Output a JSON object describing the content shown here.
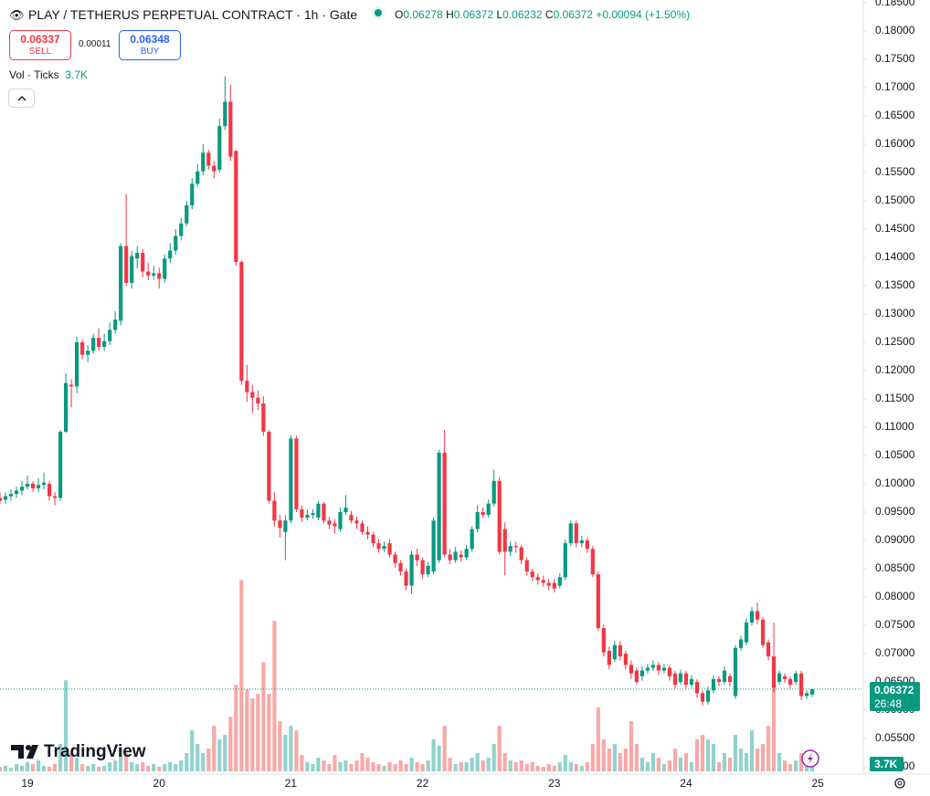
{
  "header": {
    "title": "PLAY / TETHERUS PERPETUAL CONTRACT · 1h · Gate",
    "ohlc_labels": [
      "O",
      "H",
      "L",
      "C"
    ],
    "change": "+0.00094",
    "change_pct": "(+1.50%)",
    "sell_price": "0.06337",
    "sell_label": "SELL",
    "spread": "0.00011",
    "buy_price": "0.06348",
    "buy_label": "BUY",
    "volume_indicator": "Vol · Ticks",
    "countdown": "26:48",
    "branding": "TradingView"
  },
  "chart_data": {
    "type": "candlestick",
    "open": [
      0.0975,
      0.0972,
      0.0978,
      0.0982,
      0.0988,
      0.0995,
      0.1,
      0.0992,
      0.0998,
      0.1,
      0.0978,
      0.0975,
      0.1092,
      0.1175,
      0.1172,
      0.125,
      0.1228,
      0.1235,
      0.1258,
      0.1242,
      0.1252,
      0.1272,
      0.1288,
      0.142,
      0.1355,
      0.1398,
      0.1408,
      0.1375,
      0.1368,
      0.1372,
      0.1362,
      0.1398,
      0.1412,
      0.1438,
      0.146,
      0.1492,
      0.153,
      0.1552,
      0.1585,
      0.1562,
      0.1555,
      0.1632,
      0.1675,
      0.1588,
      0.1392,
      0.1182,
      0.1162,
      0.1152,
      0.1142,
      0.1092,
      0.097,
      0.0935,
      0.0915,
      0.0935,
      0.108,
      0.0955,
      0.094,
      0.0945,
      0.094,
      0.0965,
      0.0935,
      0.093,
      0.092,
      0.095,
      0.0945,
      0.0935,
      0.093,
      0.0915,
      0.091,
      0.0895,
      0.0885,
      0.0895,
      0.0875,
      0.086,
      0.0845,
      0.082,
      0.0875,
      0.0865,
      0.084,
      0.0845,
      0.0865,
      0.1055,
      0.0875,
      0.0865,
      0.0875,
      0.087,
      0.0885,
      0.092,
      0.095,
      0.0945,
      0.0965,
      0.1005,
      0.092,
      0.088,
      0.089,
      0.0888,
      0.0865,
      0.0845,
      0.0835,
      0.083,
      0.0825,
      0.0825,
      0.082,
      0.0835,
      0.0895,
      0.093,
      0.0895,
      0.09,
      0.0885,
      0.084,
      0.0745,
      0.0705,
      0.069,
      0.0715,
      0.07,
      0.068,
      0.067,
      0.066,
      0.067,
      0.0675,
      0.068,
      0.067,
      0.0675,
      0.0665,
      0.065,
      0.0665,
      0.0645,
      0.065,
      0.063,
      0.0615,
      0.0635,
      0.0655,
      0.065,
      0.066,
      0.0625,
      0.071,
      0.072,
      0.0755,
      0.0775,
      0.076,
      0.072,
      0.0695,
      0.065,
      0.066,
      0.0655,
      0.065,
      0.0665,
      0.0625,
      0.06278
    ],
    "high": [
      0.0985,
      0.0985,
      0.099,
      0.0995,
      0.1005,
      0.1015,
      0.1005,
      0.101,
      0.102,
      0.1005,
      0.0985,
      0.1095,
      0.1195,
      0.1185,
      0.126,
      0.1255,
      0.1245,
      0.1265,
      0.1275,
      0.1265,
      0.1285,
      0.1305,
      0.1425,
      0.1512,
      0.1412,
      0.142,
      0.1415,
      0.139,
      0.1385,
      0.1382,
      0.1405,
      0.1425,
      0.145,
      0.147,
      0.15,
      0.154,
      0.1565,
      0.16,
      0.159,
      0.157,
      0.1645,
      0.172,
      0.1705,
      0.159,
      0.1395,
      0.121,
      0.1175,
      0.1165,
      0.1155,
      0.1095,
      0.0985,
      0.0945,
      0.0945,
      0.1085,
      0.1085,
      0.0962,
      0.0955,
      0.0955,
      0.097,
      0.0968,
      0.0942,
      0.0938,
      0.0958,
      0.098,
      0.0952,
      0.0942,
      0.0935,
      0.0925,
      0.0915,
      0.0902,
      0.0898,
      0.0902,
      0.088,
      0.0865,
      0.085,
      0.0882,
      0.0885,
      0.087,
      0.0862,
      0.094,
      0.106,
      0.1095,
      0.0885,
      0.0888,
      0.0882,
      0.0892,
      0.0925,
      0.0962,
      0.0958,
      0.0972,
      0.1025,
      0.1012,
      0.0932,
      0.0898,
      0.0898,
      0.0892,
      0.087,
      0.085,
      0.0842,
      0.0838,
      0.0832,
      0.0832,
      0.0842,
      0.0902,
      0.0935,
      0.0935,
      0.0908,
      0.0905,
      0.089,
      0.0845,
      0.0752,
      0.0712,
      0.0722,
      0.0722,
      0.0705,
      0.0688,
      0.0675,
      0.0678,
      0.0682,
      0.0688,
      0.0685,
      0.0682,
      0.068,
      0.067,
      0.0672,
      0.067,
      0.0662,
      0.0655,
      0.0635,
      0.0642,
      0.0662,
      0.066,
      0.0678,
      0.0665,
      0.0715,
      0.0732,
      0.0762,
      0.0782,
      0.079,
      0.0765,
      0.0725,
      0.0755,
      0.067,
      0.0665,
      0.066,
      0.067,
      0.067,
      0.0635,
      0.06372
    ],
    "low": [
      0.0965,
      0.0965,
      0.097,
      0.0975,
      0.098,
      0.099,
      0.0985,
      0.0985,
      0.099,
      0.097,
      0.0962,
      0.097,
      0.109,
      0.1135,
      0.116,
      0.122,
      0.1215,
      0.123,
      0.1235,
      0.1235,
      0.1245,
      0.1265,
      0.128,
      0.135,
      0.1345,
      0.138,
      0.1365,
      0.136,
      0.136,
      0.1345,
      0.1355,
      0.139,
      0.1405,
      0.143,
      0.1455,
      0.1485,
      0.1525,
      0.1545,
      0.1555,
      0.154,
      0.155,
      0.1625,
      0.157,
      0.1385,
      0.1175,
      0.1145,
      0.1125,
      0.113,
      0.1085,
      0.0965,
      0.0925,
      0.0905,
      0.0865,
      0.093,
      0.095,
      0.0932,
      0.0935,
      0.0938,
      0.0935,
      0.093,
      0.092,
      0.0912,
      0.0915,
      0.0945,
      0.093,
      0.092,
      0.091,
      0.0902,
      0.0888,
      0.0878,
      0.088,
      0.087,
      0.0852,
      0.0838,
      0.0812,
      0.0805,
      0.0855,
      0.0832,
      0.0835,
      0.084,
      0.086,
      0.087,
      0.0858,
      0.086,
      0.0862,
      0.0865,
      0.088,
      0.0915,
      0.094,
      0.094,
      0.096,
      0.0875,
      0.0838,
      0.0872,
      0.0878,
      0.0858,
      0.0838,
      0.0828,
      0.0822,
      0.0818,
      0.0812,
      0.0808,
      0.0815,
      0.083,
      0.089,
      0.0888,
      0.0888,
      0.0878,
      0.0835,
      0.074,
      0.0695,
      0.0672,
      0.0685,
      0.0688,
      0.0672,
      0.0655,
      0.0645,
      0.0652,
      0.0665,
      0.067,
      0.0662,
      0.0665,
      0.0652,
      0.0638,
      0.0645,
      0.0638,
      0.064,
      0.0622,
      0.0608,
      0.061,
      0.063,
      0.0642,
      0.0645,
      0.0642,
      0.062,
      0.0705,
      0.0715,
      0.075,
      0.0752,
      0.071,
      0.0688,
      0.0632,
      0.0645,
      0.0648,
      0.0638,
      0.0645,
      0.0618,
      0.062,
      0.06232
    ],
    "close": [
      0.097,
      0.0978,
      0.0982,
      0.0988,
      0.0995,
      0.1,
      0.0992,
      0.0998,
      0.1002,
      0.0978,
      0.0975,
      0.1092,
      0.1178,
      0.1172,
      0.125,
      0.1228,
      0.1235,
      0.1258,
      0.1242,
      0.1252,
      0.1272,
      0.129,
      0.142,
      0.1355,
      0.1402,
      0.1408,
      0.1375,
      0.1368,
      0.1372,
      0.1362,
      0.1398,
      0.1412,
      0.1438,
      0.146,
      0.1492,
      0.153,
      0.1552,
      0.1585,
      0.1562,
      0.1552,
      0.1632,
      0.1675,
      0.1578,
      0.1392,
      0.1182,
      0.1162,
      0.1152,
      0.1142,
      0.1092,
      0.097,
      0.0935,
      0.0922,
      0.0935,
      0.108,
      0.0955,
      0.094,
      0.0945,
      0.0948,
      0.0965,
      0.0935,
      0.0928,
      0.0925,
      0.095,
      0.0958,
      0.0935,
      0.093,
      0.0915,
      0.091,
      0.0895,
      0.0885,
      0.089,
      0.0875,
      0.086,
      0.0845,
      0.082,
      0.0875,
      0.0865,
      0.084,
      0.0855,
      0.0935,
      0.1055,
      0.0875,
      0.0865,
      0.088,
      0.087,
      0.0885,
      0.092,
      0.095,
      0.0945,
      0.0965,
      0.1005,
      0.088,
      0.088,
      0.089,
      0.0888,
      0.0865,
      0.0845,
      0.0835,
      0.083,
      0.0825,
      0.082,
      0.0815,
      0.0835,
      0.0895,
      0.093,
      0.0895,
      0.09,
      0.0885,
      0.084,
      0.0745,
      0.0702,
      0.068,
      0.0715,
      0.0695,
      0.068,
      0.0665,
      0.065,
      0.067,
      0.0675,
      0.068,
      0.067,
      0.0675,
      0.066,
      0.0645,
      0.0665,
      0.0645,
      0.0655,
      0.063,
      0.0615,
      0.0635,
      0.0655,
      0.065,
      0.067,
      0.065,
      0.071,
      0.0725,
      0.0755,
      0.0775,
      0.076,
      0.0715,
      0.0695,
      0.064,
      0.0665,
      0.0655,
      0.0645,
      0.0665,
      0.0625,
      0.063,
      0.06372
    ],
    "volume": [
      2300,
      2800,
      1800,
      3700,
      2800,
      4600,
      3700,
      5500,
      2800,
      2300,
      3700,
      13800,
      46000,
      9200,
      6900,
      3700,
      2800,
      3700,
      2300,
      2800,
      4600,
      5500,
      11500,
      9200,
      4600,
      3700,
      4600,
      2800,
      3700,
      2300,
      3700,
      4600,
      3700,
      5500,
      9200,
      20700,
      13800,
      9200,
      11500,
      23000,
      16100,
      18400,
      27600,
      43700,
      96600,
      41400,
      36800,
      39100,
      55200,
      39100,
      75900,
      25300,
      18400,
      23000,
      20700,
      8300,
      4600,
      3700,
      6900,
      5500,
      3700,
      8300,
      4600,
      5500,
      3700,
      5500,
      9200,
      6900,
      4600,
      3700,
      2800,
      4600,
      3700,
      5500,
      3700,
      6900,
      4600,
      3700,
      5500,
      16100,
      12900,
      23000,
      6900,
      3700,
      4600,
      4600,
      6900,
      9200,
      5500,
      6900,
      13800,
      23000,
      9200,
      5500,
      4600,
      5500,
      3700,
      4600,
      2800,
      2300,
      3700,
      2800,
      4600,
      8300,
      4600,
      3700,
      2800,
      4600,
      13800,
      32200,
      16100,
      11500,
      13800,
      9200,
      11500,
      25300,
      13800,
      6900,
      4600,
      9200,
      6900,
      3700,
      5500,
      11500,
      6900,
      9200,
      4600,
      16100,
      18400,
      16100,
      13800,
      4600,
      9200,
      6900,
      18400,
      11500,
      9200,
      20700,
      11500,
      13800,
      23000,
      43700,
      9200,
      5500,
      3700,
      5500,
      9200,
      2800,
      3700
    ],
    "volume_label": "3.7K",
    "volume_lim": [
      0,
      100000
    ],
    "up_color": "#089981",
    "down_color": "#f23645",
    "up_volume_color": "#92d2cc",
    "down_volume_color": "#f7a9a7",
    "ylim": [
      0.04871,
      0.18548
    ],
    "yticks": [
      {
        "value": 0.05,
        "label": "0.05000"
      },
      {
        "value": 0.055,
        "label": "0.05500"
      },
      {
        "value": 0.06,
        "label": "0.06000"
      },
      {
        "value": 0.065,
        "label": "0.06500"
      },
      {
        "value": 0.07,
        "label": "0.07000"
      },
      {
        "value": 0.075,
        "label": "0.07500"
      },
      {
        "value": 0.08,
        "label": "0.08000"
      },
      {
        "value": 0.085,
        "label": "0.08500"
      },
      {
        "value": 0.09,
        "label": "0.09000"
      },
      {
        "value": 0.095,
        "label": "0.09500"
      },
      {
        "value": 0.1,
        "label": "0.10000"
      },
      {
        "value": 0.105,
        "label": "0.10500"
      },
      {
        "value": 0.11,
        "label": "0.11000"
      },
      {
        "value": 0.115,
        "label": "0.11500"
      },
      {
        "value": 0.12,
        "label": "0.12000"
      },
      {
        "value": 0.125,
        "label": "0.12500"
      },
      {
        "value": 0.13,
        "label": "0.13000"
      },
      {
        "value": 0.135,
        "label": "0.13500"
      },
      {
        "value": 0.14,
        "label": "0.14000"
      },
      {
        "value": 0.145,
        "label": "0.14500"
      },
      {
        "value": 0.15,
        "label": "0.15000"
      },
      {
        "value": 0.155,
        "label": "0.15500"
      },
      {
        "value": 0.16,
        "label": "0.16000"
      },
      {
        "value": 0.165,
        "label": "0.16500"
      },
      {
        "value": 0.17,
        "label": "0.17000"
      },
      {
        "value": 0.175,
        "label": "0.17500"
      },
      {
        "value": 0.18,
        "label": "0.18000"
      },
      {
        "value": 0.185,
        "label": "0.18500"
      }
    ],
    "xlim": [
      0,
      157.3
    ],
    "xticks": [
      {
        "value": 5,
        "label": "19"
      },
      {
        "value": 29,
        "label": "20"
      },
      {
        "value": 53,
        "label": "21"
      },
      {
        "value": 77,
        "label": "22"
      },
      {
        "value": 101,
        "label": "23"
      },
      {
        "value": 125,
        "label": "24"
      },
      {
        "value": 149,
        "label": "25"
      }
    ],
    "grid": false
  }
}
